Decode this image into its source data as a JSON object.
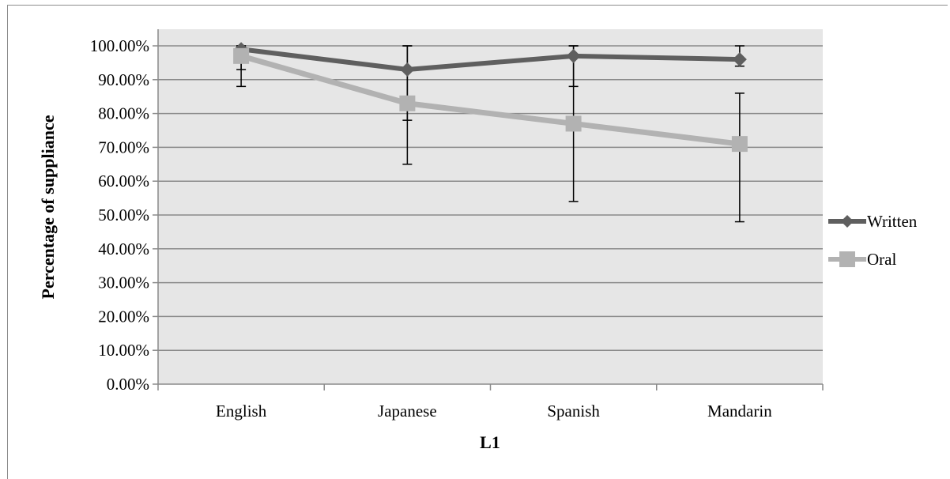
{
  "chart_data": {
    "type": "line",
    "title": "",
    "xlabel": "L1",
    "ylabel": "Percentage of suppliance",
    "categories": [
      "English",
      "Japanese",
      "Spanish",
      "Mandarin"
    ],
    "ylim": [
      0,
      100
    ],
    "y_ticks": [
      "0.00%",
      "10.00%",
      "20.00%",
      "30.00%",
      "40.00%",
      "50.00%",
      "60.00%",
      "70.00%",
      "80.00%",
      "90.00%",
      "100.00%"
    ],
    "grid": true,
    "legend_position": "right",
    "series": [
      {
        "name": "Written",
        "values": [
          99,
          93,
          97,
          96
        ],
        "error_low": [
          93,
          78,
          88,
          94
        ],
        "error_high": [
          100,
          100,
          100,
          100
        ],
        "color": "#5f5f5f",
        "marker": "diamond"
      },
      {
        "name": "Oral",
        "values": [
          97,
          83,
          77,
          71
        ],
        "error_low": [
          88,
          65,
          54,
          48
        ],
        "error_high": [
          100,
          100,
          100,
          86
        ],
        "color": "#b2b2b2",
        "marker": "square"
      }
    ]
  }
}
